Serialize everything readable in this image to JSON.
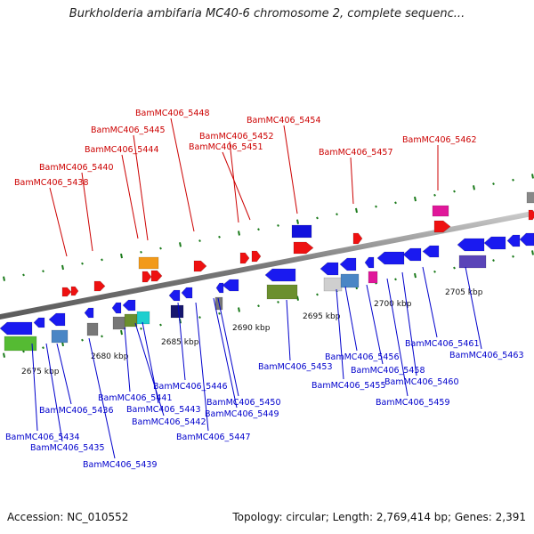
{
  "title": "Burkholderia ambifaria MC40-6 chromosome 2, complete sequenc...",
  "footer": {
    "accession": "Accession: NC_010552",
    "stats": "Topology: circular; Length: 2,769,414 bp; Genes: 2,391"
  },
  "colors": {
    "backbone": "#8a8a8a",
    "top_label": "#cc0000",
    "bottom_label": "#0000cc",
    "tick": "#1a7a1a"
  },
  "scale_labels": [
    "2675 kbp",
    "2680 kbp",
    "2685 kbp",
    "2690 kbp",
    "2695 kbp",
    "2700 kbp",
    "2705 kbp"
  ],
  "top_labels": [
    "BamMC406_5438",
    "BamMC406_5440",
    "BamMC406_5444",
    "BamMC406_5445",
    "BamMC406_5448",
    "BamMC406_5451",
    "BamMC406_5452",
    "BamMC406_5454",
    "BamMC406_5457",
    "BamMC406_5462"
  ],
  "bottom_labels": [
    "BamMC406_5434",
    "BamMC406_5435",
    "BamMC406_5436",
    "BamMC406_5439",
    "BamMC406_5441",
    "BamMC406_5442",
    "BamMC406_5443",
    "BamMC406_5446",
    "BamMC406_5447",
    "BamMC406_5449",
    "BamMC406_5450",
    "BamMC406_5453",
    "BamMC406_5455",
    "BamMC406_5456",
    "BamMC406_5458",
    "BamMC406_5459",
    "BamMC406_5460",
    "BamMC406_5461",
    "BamMC406_5463"
  ]
}
